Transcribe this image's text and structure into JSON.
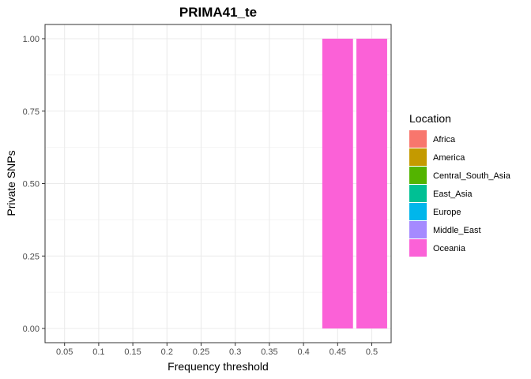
{
  "chart_data": {
    "type": "bar",
    "title": "PRIMA41_te",
    "xlabel": "Frequency threshold",
    "ylabel": "Private SNPs",
    "categories": [
      "0.05",
      "0.1",
      "0.15",
      "0.2",
      "0.25",
      "0.3",
      "0.35",
      "0.4",
      "0.45",
      "0.5"
    ],
    "ylim": [
      0,
      1
    ],
    "yticks": [
      "0.00",
      "0.25",
      "0.50",
      "0.75",
      "1.00"
    ],
    "grid": true,
    "legend": {
      "title": "Location",
      "placement": "right",
      "entries": [
        {
          "name": "Africa",
          "color": "#F8766D"
        },
        {
          "name": "America",
          "color": "#C49A00"
        },
        {
          "name": "Central_South_Asia",
          "color": "#53B400"
        },
        {
          "name": "East_Asia",
          "color": "#00C094"
        },
        {
          "name": "Europe",
          "color": "#00B6EB"
        },
        {
          "name": "Middle_East",
          "color": "#A58AFF"
        },
        {
          "name": "Oceania",
          "color": "#FB61D7"
        }
      ]
    },
    "series": [
      {
        "name": "Africa",
        "values": [
          0,
          0,
          0,
          0,
          0,
          0,
          0,
          0,
          0,
          0
        ]
      },
      {
        "name": "America",
        "values": [
          0,
          0,
          0,
          0,
          0,
          0,
          0,
          0,
          0,
          0
        ]
      },
      {
        "name": "Central_South_Asia",
        "values": [
          0,
          0,
          0,
          0,
          0,
          0,
          0,
          0,
          0,
          0
        ]
      },
      {
        "name": "East_Asia",
        "values": [
          0,
          0,
          0,
          0,
          0,
          0,
          0,
          0,
          0,
          0
        ]
      },
      {
        "name": "Europe",
        "values": [
          0,
          0,
          0,
          0,
          0,
          0,
          0,
          0,
          0,
          0
        ]
      },
      {
        "name": "Middle_East",
        "values": [
          0,
          0,
          0,
          0,
          0,
          0,
          0,
          0,
          0,
          0
        ]
      },
      {
        "name": "Oceania",
        "values": [
          0,
          0,
          0,
          0,
          0,
          0,
          0,
          0,
          1,
          1
        ]
      }
    ]
  }
}
